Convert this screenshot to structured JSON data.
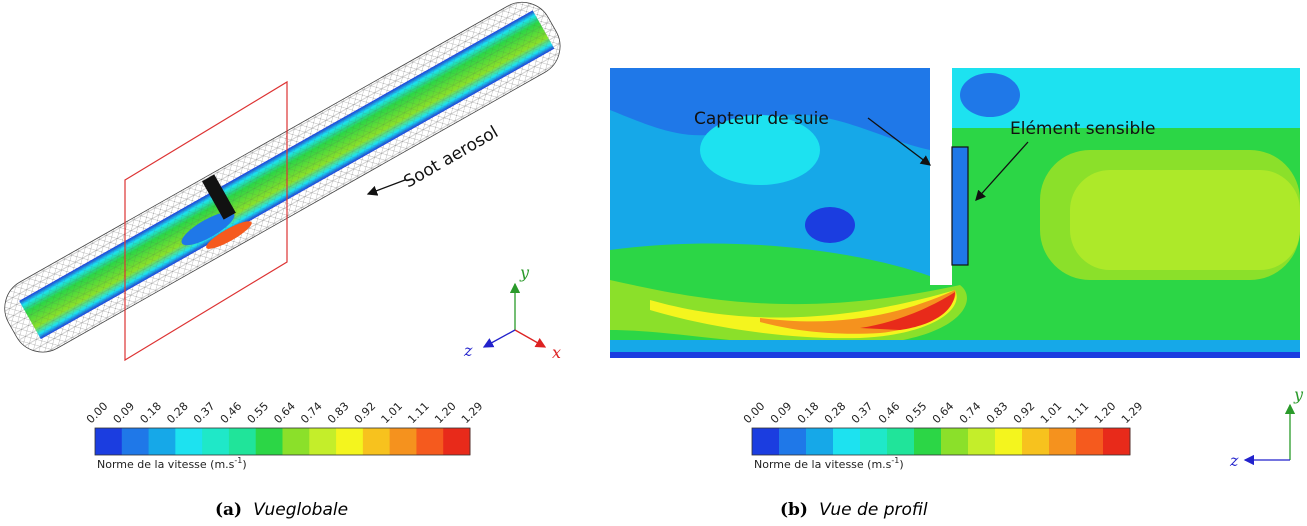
{
  "colorbar_colors": [
    "#1b3de0",
    "#1f78e8",
    "#16a8e8",
    "#1de2f0",
    "#1fe8c8",
    "#20e49a",
    "#2cd646",
    "#8be02a",
    "#c4ee2a",
    "#f4f51e",
    "#f7c21e",
    "#f5921e",
    "#f55a1e",
    "#e82a1a"
  ],
  "panels": [
    {
      "caption_label": "(a)",
      "caption": "Vueglobale",
      "annotation": "Soot aerosol",
      "axes": {
        "y": "y",
        "z": "z",
        "x": "x"
      },
      "colorbar": {
        "ticks": [
          "0.00",
          "0.09",
          "0.18",
          "0.28",
          "0.37",
          "0.46",
          "0.55",
          "0.64",
          "0.74",
          "0.83",
          "0.92",
          "1.01",
          "1.11",
          "1.20",
          "1.29"
        ],
        "label_main": "Norme de la vitesse (m.s",
        "label_exponent": "-1",
        "label_close": ")"
      }
    },
    {
      "caption_label": "(b)",
      "caption": "Vue de profil",
      "annotations": [
        "Capteur de suie",
        "Elément sensible"
      ],
      "axes": {
        "y": "y",
        "z": "z"
      },
      "colorbar": {
        "ticks": [
          "0.00",
          "0.09",
          "0.18",
          "0.28",
          "0.37",
          "0.46",
          "0.55",
          "0.64",
          "0.74",
          "0.83",
          "0.92",
          "1.01",
          "1.11",
          "1.20",
          "1.29"
        ],
        "label_main": "Norme de la vitesse (m.s",
        "label_exponent": "-1",
        "label_close": ")"
      }
    }
  ]
}
